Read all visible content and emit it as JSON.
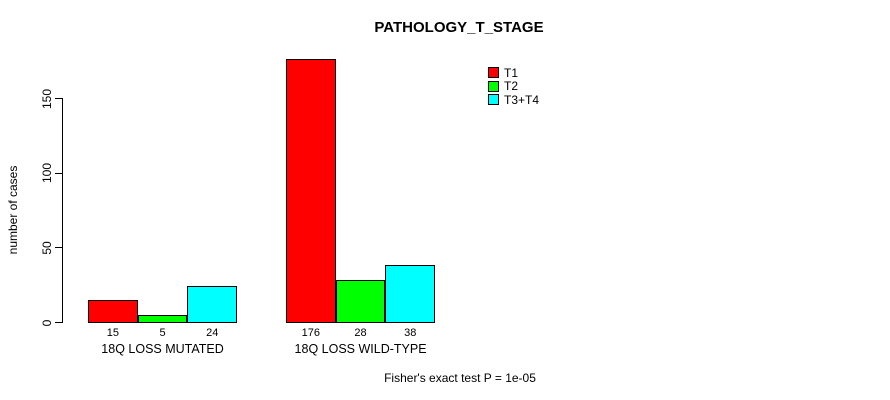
{
  "chart_data": {
    "type": "bar",
    "title": "PATHOLOGY_T_STAGE",
    "ylabel": "number of cases",
    "xlabel": "",
    "categories": [
      "18Q LOSS MUTATED",
      "18Q LOSS WILD-TYPE"
    ],
    "series": [
      {
        "name": "T1",
        "color": "#ff0000",
        "values": [
          15,
          176
        ]
      },
      {
        "name": "T2",
        "color": "#00ff00",
        "values": [
          5,
          28
        ]
      },
      {
        "name": "T3+T4",
        "color": "#00ffff",
        "values": [
          24,
          38
        ]
      }
    ],
    "yticks": [
      0,
      50,
      100,
      150
    ],
    "ylim": [
      0,
      150
    ],
    "grid": false,
    "legend_position": "top-right",
    "bar_value_labels": [
      [
        15,
        5,
        24
      ],
      [
        176,
        28,
        38
      ]
    ],
    "annotation": "Fisher's exact test P = 1e-05"
  }
}
